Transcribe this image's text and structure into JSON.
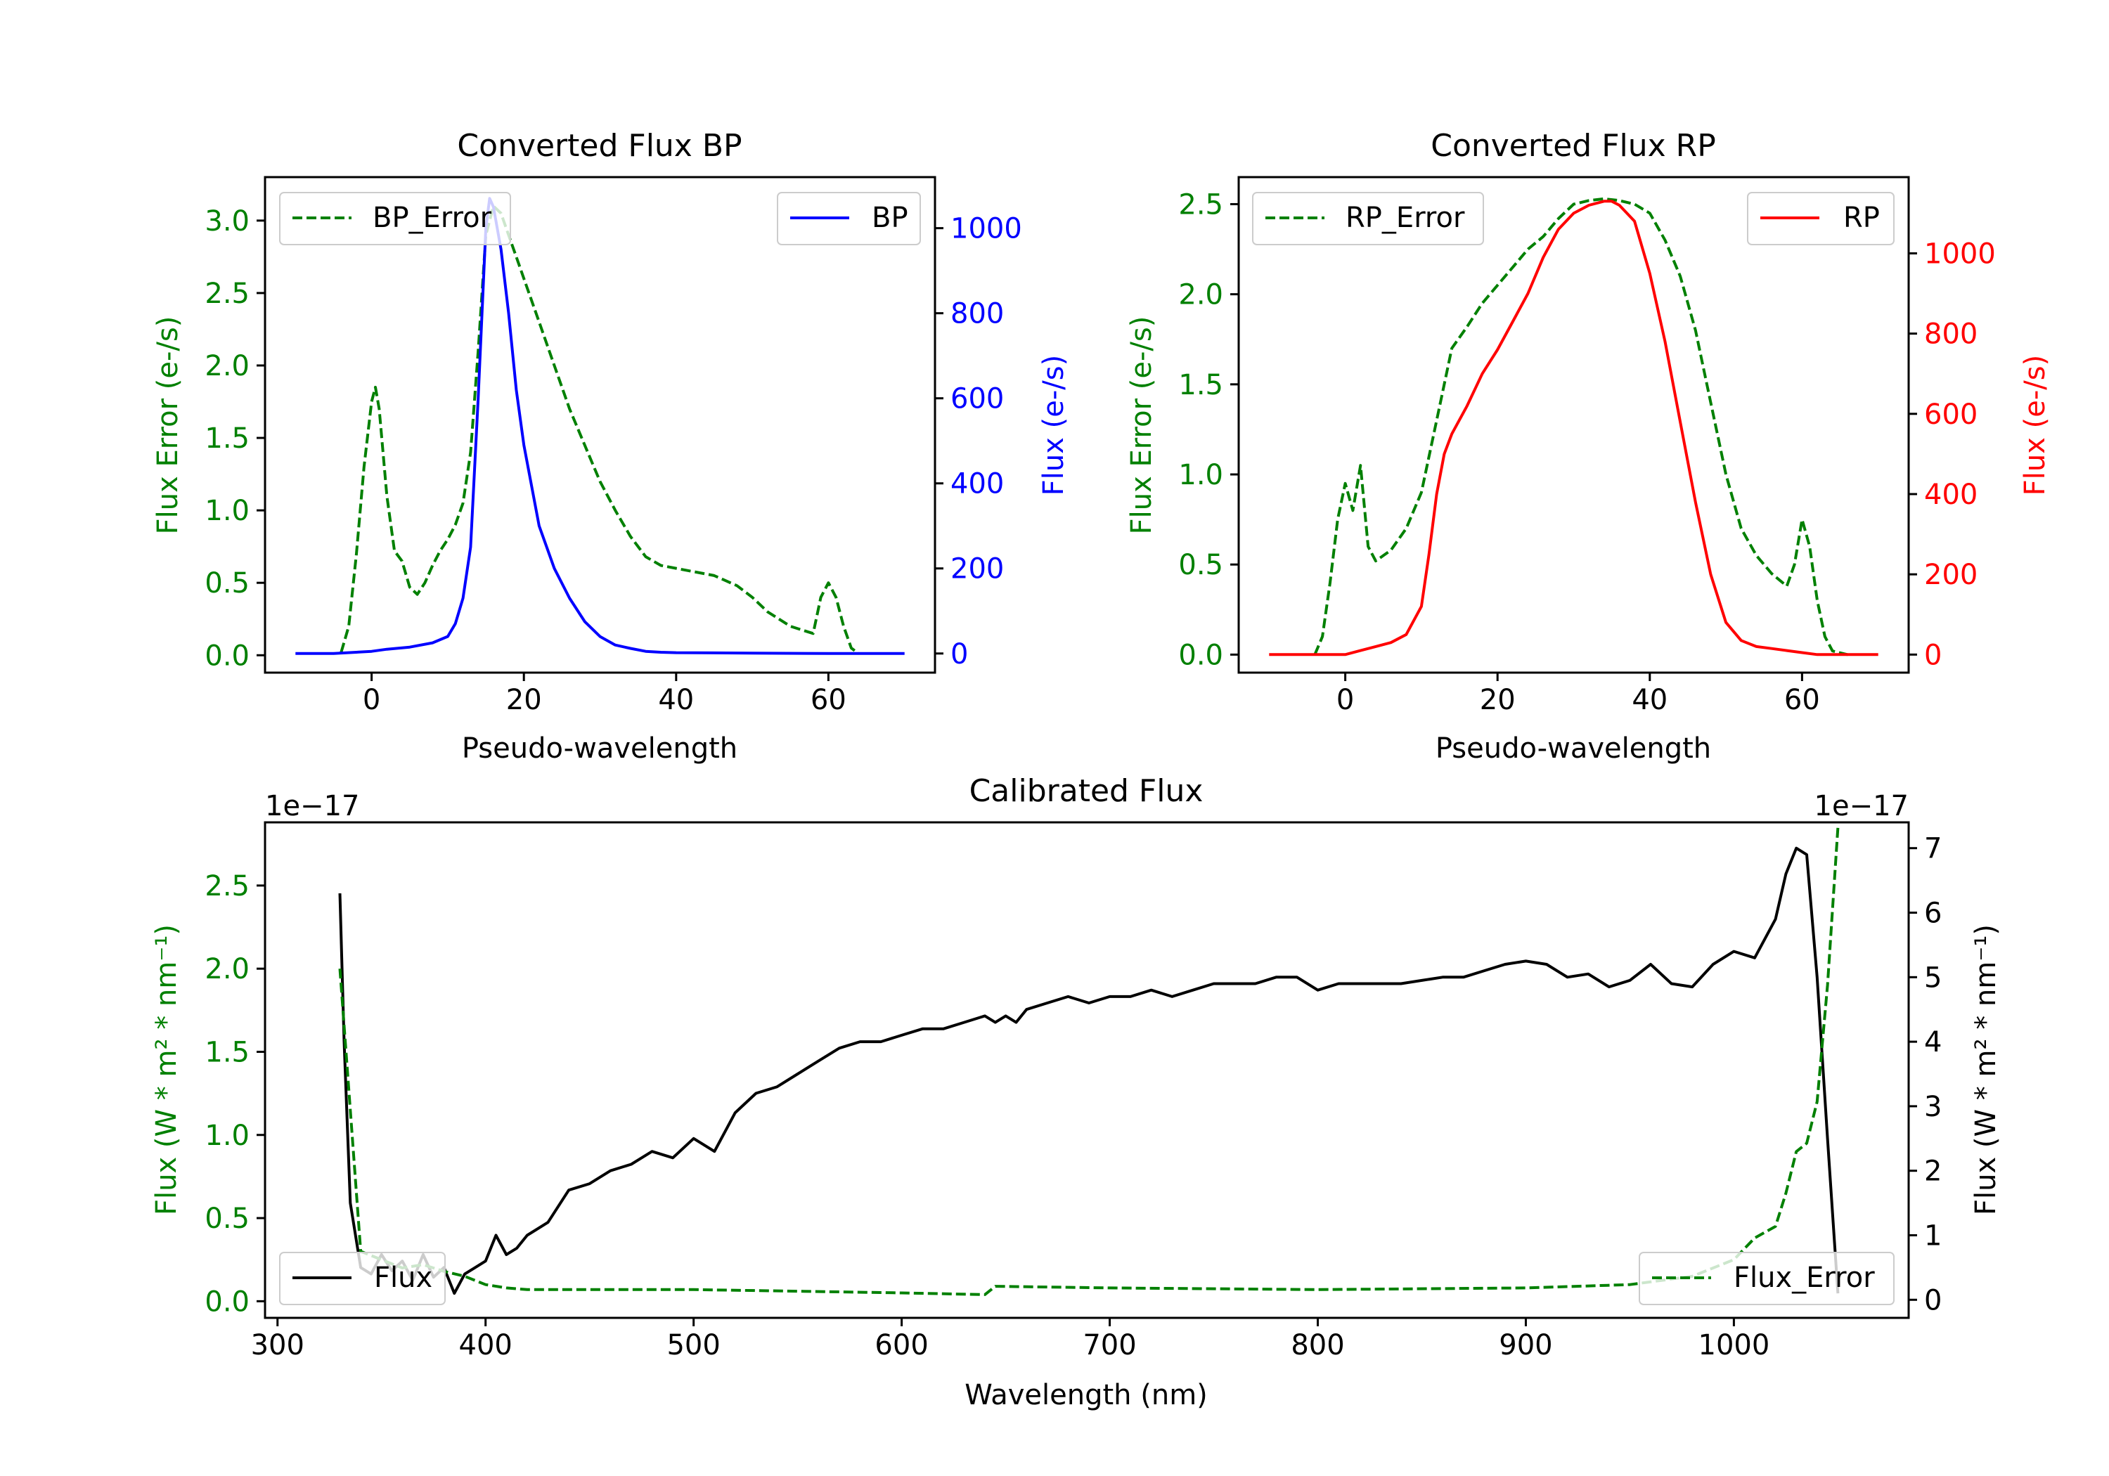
{
  "colors": {
    "green": "#008000",
    "blue": "#0000ff",
    "red": "#ff0000",
    "black": "#000000",
    "frame": "#000000"
  },
  "chart_data": [
    {
      "id": "bp",
      "type": "line",
      "title": "Converted Flux BP",
      "xlabel": "Pseudo-wavelength",
      "ylabel_left": "Flux Error (e-/s)",
      "ylabel_right": "Flux (e-/s)",
      "xlim": [
        -14,
        74
      ],
      "ylim_left": [
        -0.12,
        3.3
      ],
      "ylim_right": [
        -45,
        1120
      ],
      "xticks": [
        0,
        20,
        40,
        60
      ],
      "yticks_left": [
        0.0,
        0.5,
        1.0,
        1.5,
        2.0,
        2.5,
        3.0
      ],
      "ytick_labels_left": [
        "0.0",
        "0.5",
        "1.0",
        "1.5",
        "2.0",
        "2.5",
        "3.0"
      ],
      "yticks_right": [
        0,
        200,
        400,
        600,
        800,
        1000
      ],
      "ytick_labels_right": [
        "0",
        "200",
        "400",
        "600",
        "800",
        "1000"
      ],
      "left_color": "green",
      "right_color": "blue",
      "series": [
        {
          "name": "BP_Error",
          "axis": "left",
          "color": "green",
          "dash": true,
          "x": [
            -4,
            -3,
            -2,
            -1,
            0,
            0.5,
            1,
            2,
            3,
            4,
            5,
            6,
            7,
            8,
            9,
            10,
            11,
            12,
            13,
            14,
            15,
            16,
            17,
            18,
            19,
            20,
            22,
            24,
            26,
            28,
            30,
            32,
            34,
            36,
            38,
            40,
            45,
            48,
            50,
            52,
            55,
            58,
            59,
            60,
            61,
            62,
            63,
            64
          ],
          "y": [
            0.02,
            0.2,
            0.7,
            1.3,
            1.75,
            1.85,
            1.7,
            1.1,
            0.72,
            0.65,
            0.47,
            0.42,
            0.5,
            0.62,
            0.72,
            0.8,
            0.9,
            1.05,
            1.4,
            2.1,
            2.9,
            3.1,
            3.05,
            2.9,
            2.75,
            2.6,
            2.3,
            2.0,
            1.7,
            1.45,
            1.2,
            1.0,
            0.82,
            0.68,
            0.62,
            0.6,
            0.55,
            0.48,
            0.4,
            0.3,
            0.2,
            0.15,
            0.4,
            0.5,
            0.4,
            0.2,
            0.05,
            0.01
          ]
        },
        {
          "name": "BP",
          "axis": "right",
          "color": "blue",
          "dash": false,
          "x": [
            -10,
            -5,
            0,
            2,
            5,
            8,
            10,
            11,
            12,
            13,
            14,
            15,
            15.5,
            16,
            17,
            18,
            19,
            20,
            22,
            24,
            26,
            28,
            30,
            32,
            34,
            36,
            38,
            40,
            50,
            60,
            70
          ],
          "y": [
            0,
            0,
            5,
            10,
            15,
            25,
            40,
            70,
            130,
            250,
            600,
            1000,
            1070,
            1050,
            950,
            800,
            620,
            490,
            300,
            200,
            130,
            75,
            40,
            20,
            12,
            5,
            3,
            2,
            1,
            0,
            0
          ]
        }
      ],
      "legend": [
        {
          "label": "BP_Error",
          "position": "upper-left"
        },
        {
          "label": "BP",
          "position": "upper-right"
        }
      ]
    },
    {
      "id": "rp",
      "type": "line",
      "title": "Converted Flux RP",
      "xlabel": "Pseudo-wavelength",
      "ylabel_left": "Flux Error (e-/s)",
      "ylabel_right": "Flux (e-/s)",
      "xlim": [
        -14,
        74
      ],
      "ylim_left": [
        -0.1,
        2.65
      ],
      "ylim_right": [
        -45,
        1190
      ],
      "xticks": [
        0,
        20,
        40,
        60
      ],
      "yticks_left": [
        0.0,
        0.5,
        1.0,
        1.5,
        2.0,
        2.5
      ],
      "ytick_labels_left": [
        "0.0",
        "0.5",
        "1.0",
        "1.5",
        "2.0",
        "2.5"
      ],
      "yticks_right": [
        0,
        200,
        400,
        600,
        800,
        1000
      ],
      "ytick_labels_right": [
        "0",
        "200",
        "400",
        "600",
        "800",
        "1000"
      ],
      "left_color": "green",
      "right_color": "red",
      "series": [
        {
          "name": "RP_Error",
          "axis": "left",
          "color": "green",
          "dash": true,
          "x": [
            -4,
            -3,
            -2,
            -1,
            0,
            1,
            2,
            3,
            4,
            5,
            6,
            8,
            10,
            12,
            14,
            16,
            18,
            20,
            22,
            24,
            26,
            28,
            30,
            32,
            34,
            36,
            38,
            40,
            42,
            44,
            46,
            48,
            50,
            52,
            54,
            56,
            58,
            59,
            60,
            61,
            62,
            63,
            64,
            66
          ],
          "y": [
            0.0,
            0.1,
            0.4,
            0.75,
            0.95,
            0.8,
            1.05,
            0.6,
            0.52,
            0.55,
            0.58,
            0.7,
            0.9,
            1.3,
            1.7,
            1.82,
            1.95,
            2.05,
            2.15,
            2.25,
            2.32,
            2.42,
            2.5,
            2.52,
            2.53,
            2.52,
            2.5,
            2.45,
            2.3,
            2.1,
            1.8,
            1.4,
            1.0,
            0.7,
            0.55,
            0.45,
            0.38,
            0.5,
            0.75,
            0.6,
            0.3,
            0.1,
            0.02,
            0.0
          ]
        },
        {
          "name": "RP",
          "axis": "right",
          "color": "red",
          "dash": false,
          "x": [
            -10,
            -5,
            0,
            2,
            4,
            6,
            8,
            10,
            11,
            12,
            13,
            14,
            16,
            18,
            20,
            22,
            24,
            26,
            28,
            30,
            32,
            34,
            35,
            36,
            38,
            40,
            42,
            44,
            46,
            48,
            50,
            52,
            54,
            56,
            58,
            60,
            62,
            65,
            70
          ],
          "y": [
            0,
            0,
            0,
            10,
            20,
            30,
            50,
            120,
            250,
            400,
            500,
            550,
            620,
            700,
            760,
            830,
            900,
            990,
            1060,
            1100,
            1120,
            1130,
            1130,
            1120,
            1080,
            950,
            780,
            580,
            380,
            200,
            80,
            35,
            20,
            15,
            10,
            5,
            0,
            0,
            0
          ]
        }
      ],
      "legend": [
        {
          "label": "RP_Error",
          "position": "upper-left"
        },
        {
          "label": "RP",
          "position": "upper-right"
        }
      ]
    },
    {
      "id": "cal",
      "type": "line",
      "title": "Calibrated Flux",
      "xlabel": "Wavelength (nm)",
      "ylabel_left": "Flux (W * m² * nm⁻¹)",
      "ylabel_right": "Flux (W * m² * nm⁻¹)",
      "offset_left": "1e−17",
      "offset_right": "1e−17",
      "xlim": [
        294,
        1084
      ],
      "ylim_left": [
        -0.1,
        2.88
      ],
      "ylim_right": [
        -0.28,
        7.4
      ],
      "xticks": [
        300,
        400,
        500,
        600,
        700,
        800,
        900,
        1000
      ],
      "yticks_left": [
        0.0,
        0.5,
        1.0,
        1.5,
        2.0,
        2.5
      ],
      "ytick_labels_left": [
        "0.0",
        "0.5",
        "1.0",
        "1.5",
        "2.0",
        "2.5"
      ],
      "yticks_right": [
        0,
        1,
        2,
        3,
        4,
        5,
        6,
        7
      ],
      "ytick_labels_right": [
        "0",
        "1",
        "2",
        "3",
        "4",
        "5",
        "6",
        "7"
      ],
      "left_color": "green",
      "right_color": "black",
      "series": [
        {
          "name": "Flux",
          "axis": "right",
          "color": "black",
          "dash": false,
          "x": [
            330,
            332,
            335,
            340,
            345,
            350,
            355,
            360,
            365,
            370,
            375,
            380,
            385,
            390,
            395,
            400,
            405,
            410,
            415,
            420,
            430,
            440,
            450,
            460,
            470,
            480,
            490,
            500,
            510,
            520,
            530,
            540,
            550,
            560,
            570,
            580,
            590,
            600,
            610,
            620,
            630,
            640,
            645,
            650,
            655,
            660,
            670,
            680,
            690,
            700,
            710,
            720,
            730,
            740,
            750,
            760,
            770,
            780,
            790,
            800,
            810,
            820,
            830,
            840,
            850,
            860,
            870,
            880,
            890,
            900,
            910,
            920,
            930,
            940,
            950,
            960,
            970,
            980,
            990,
            1000,
            1010,
            1020,
            1025,
            1030,
            1035,
            1040,
            1045,
            1050
          ],
          "y": [
            6.3,
            4.0,
            1.5,
            0.5,
            0.4,
            0.7,
            0.45,
            0.6,
            0.3,
            0.7,
            0.35,
            0.5,
            0.1,
            0.4,
            0.5,
            0.6,
            1.0,
            0.7,
            0.8,
            1.0,
            1.2,
            1.7,
            1.8,
            2.0,
            2.1,
            2.3,
            2.2,
            2.5,
            2.3,
            2.9,
            3.2,
            3.3,
            3.5,
            3.7,
            3.9,
            4.0,
            4.0,
            4.1,
            4.2,
            4.2,
            4.3,
            4.4,
            4.3,
            4.4,
            4.3,
            4.5,
            4.6,
            4.7,
            4.6,
            4.7,
            4.7,
            4.8,
            4.7,
            4.8,
            4.9,
            4.9,
            4.9,
            5.0,
            5.0,
            4.8,
            4.9,
            4.9,
            4.9,
            4.9,
            4.95,
            5.0,
            5.0,
            5.1,
            5.2,
            5.25,
            5.2,
            5.0,
            5.05,
            4.85,
            4.95,
            5.2,
            4.9,
            4.85,
            5.2,
            5.4,
            5.3,
            5.9,
            6.6,
            7.0,
            6.9,
            5.0,
            2.5,
            0.1
          ]
        },
        {
          "name": "Flux_Error",
          "axis": "left",
          "color": "green",
          "dash": true,
          "x": [
            330,
            340,
            350,
            360,
            370,
            380,
            390,
            400,
            410,
            420,
            450,
            500,
            550,
            600,
            640,
            645,
            700,
            800,
            900,
            950,
            980,
            1000,
            1010,
            1020,
            1025,
            1030,
            1035,
            1040,
            1045,
            1050
          ],
          "y": [
            2.0,
            0.3,
            0.25,
            0.2,
            0.22,
            0.18,
            0.15,
            0.1,
            0.08,
            0.07,
            0.07,
            0.07,
            0.06,
            0.05,
            0.04,
            0.09,
            0.08,
            0.07,
            0.08,
            0.1,
            0.15,
            0.25,
            0.38,
            0.45,
            0.65,
            0.9,
            0.95,
            1.2,
            1.9,
            2.85
          ]
        }
      ],
      "legend": [
        {
          "label": "Flux",
          "position": "lower-left"
        },
        {
          "label": "Flux_Error",
          "position": "lower-right"
        }
      ]
    }
  ]
}
